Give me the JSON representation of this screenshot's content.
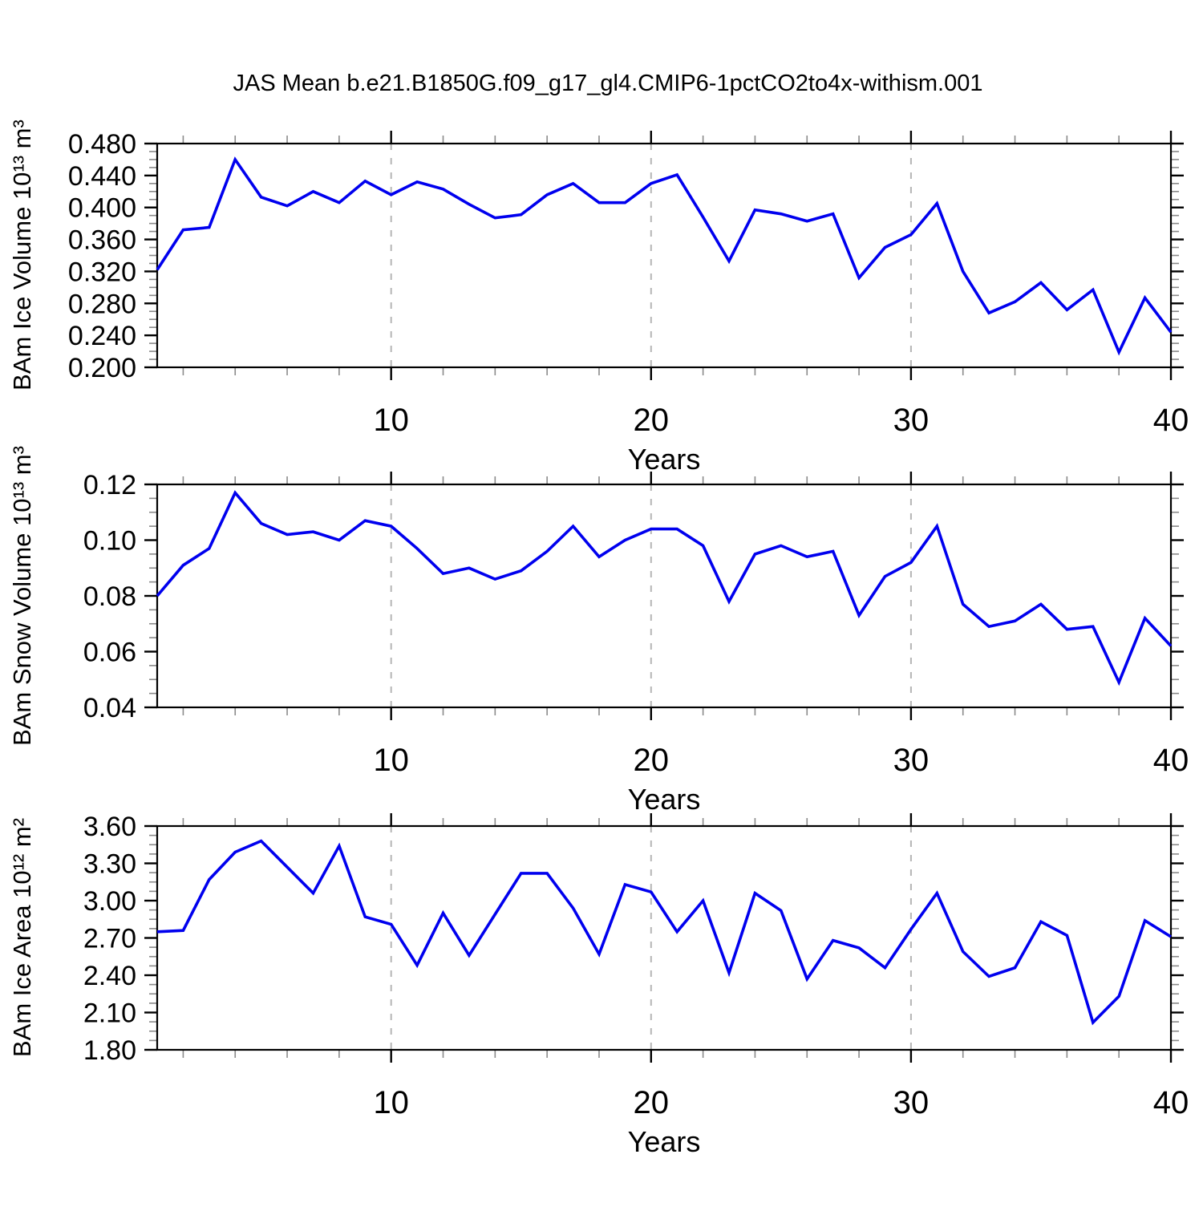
{
  "title": "JAS Mean b.e21.B1850G.f09_g17_gl4.CMIP6-1pctCO2to4x-withism.001",
  "colors": {
    "line": "#0000ee",
    "axis": "#000000",
    "minor_tick": "#8a8a8a",
    "grid": "#b5b5b5"
  },
  "x_axis": {
    "label": "Years",
    "min": 1,
    "max": 40,
    "major_ticks": [
      10,
      20,
      30,
      40
    ],
    "major_tick_labels": [
      "10",
      "20",
      "30",
      "40"
    ],
    "minor_tick_step": 2,
    "gridlines": [
      10,
      20,
      30
    ]
  },
  "chart_data": [
    {
      "id": "ice-volume",
      "type": "line",
      "ylabel": "BAm Ice Volume 10¹³ m³",
      "xlabel": "Years",
      "ylim": [
        0.2,
        0.48
      ],
      "ytick_values": [
        0.48,
        0.44,
        0.4,
        0.36,
        0.32,
        0.28,
        0.24,
        0.2
      ],
      "ytick_labels": [
        "0.480",
        "0.440",
        "0.400",
        "0.360",
        "0.320",
        "0.280",
        "0.240",
        "0.200"
      ],
      "y_minor_step": 0.01,
      "x": [
        1,
        2,
        3,
        4,
        5,
        6,
        7,
        8,
        9,
        10,
        11,
        12,
        13,
        14,
        15,
        16,
        17,
        18,
        19,
        20,
        21,
        22,
        23,
        24,
        25,
        26,
        27,
        28,
        29,
        30,
        31,
        32,
        33,
        34,
        35,
        36,
        37,
        38,
        39,
        40
      ],
      "values": [
        0.322,
        0.372,
        0.375,
        0.46,
        0.413,
        0.402,
        0.42,
        0.406,
        0.433,
        0.416,
        0.432,
        0.423,
        0.404,
        0.387,
        0.391,
        0.416,
        0.43,
        0.406,
        0.406,
        0.43,
        0.441,
        0.388,
        0.333,
        0.397,
        0.392,
        0.383,
        0.392,
        0.312,
        0.35,
        0.366,
        0.405,
        0.32,
        0.268,
        0.282,
        0.306,
        0.272,
        0.297,
        0.219,
        0.287,
        0.244
      ]
    },
    {
      "id": "snow-volume",
      "type": "line",
      "ylabel": "BAm Snow Volume 10¹³ m³",
      "xlabel": "Years",
      "ylim": [
        0.04,
        0.12
      ],
      "ytick_values": [
        0.12,
        0.1,
        0.08,
        0.06,
        0.04
      ],
      "ytick_labels": [
        "0.12",
        "0.10",
        "0.08",
        "0.06",
        "0.04"
      ],
      "y_minor_step": 0.005,
      "x": [
        1,
        2,
        3,
        4,
        5,
        6,
        7,
        8,
        9,
        10,
        11,
        12,
        13,
        14,
        15,
        16,
        17,
        18,
        19,
        20,
        21,
        22,
        23,
        24,
        25,
        26,
        27,
        28,
        29,
        30,
        31,
        32,
        33,
        34,
        35,
        36,
        37,
        38,
        39,
        40
      ],
      "values": [
        0.08,
        0.091,
        0.097,
        0.117,
        0.106,
        0.102,
        0.103,
        0.1,
        0.107,
        0.105,
        0.097,
        0.088,
        0.09,
        0.086,
        0.089,
        0.096,
        0.105,
        0.094,
        0.1,
        0.104,
        0.104,
        0.098,
        0.078,
        0.095,
        0.098,
        0.094,
        0.096,
        0.073,
        0.087,
        0.092,
        0.105,
        0.077,
        0.069,
        0.071,
        0.077,
        0.068,
        0.069,
        0.049,
        0.072,
        0.062
      ]
    },
    {
      "id": "ice-area",
      "type": "line",
      "ylabel": "BAm Ice Area 10¹² m²",
      "xlabel": "Years",
      "ylim": [
        1.8,
        3.6
      ],
      "ytick_values": [
        3.6,
        3.3,
        3.0,
        2.7,
        2.4,
        2.1,
        1.8
      ],
      "ytick_labels": [
        "3.60",
        "3.30",
        "3.00",
        "2.70",
        "2.40",
        "2.10",
        "1.80"
      ],
      "y_minor_step": 0.075,
      "x": [
        1,
        2,
        3,
        4,
        5,
        6,
        7,
        8,
        9,
        10,
        11,
        12,
        13,
        14,
        15,
        16,
        17,
        18,
        19,
        20,
        21,
        22,
        23,
        24,
        25,
        26,
        27,
        28,
        29,
        30,
        31,
        32,
        33,
        34,
        35,
        36,
        37,
        38,
        39,
        40
      ],
      "values": [
        2.75,
        2.76,
        3.17,
        3.39,
        3.48,
        3.27,
        3.06,
        3.44,
        2.87,
        2.81,
        2.48,
        2.9,
        2.56,
        2.89,
        3.22,
        3.22,
        2.94,
        2.57,
        3.13,
        3.07,
        2.75,
        3.0,
        2.42,
        3.06,
        2.92,
        2.37,
        2.68,
        2.62,
        2.46,
        2.77,
        3.06,
        2.59,
        2.39,
        2.46,
        2.83,
        2.72,
        2.02,
        2.23,
        2.84,
        2.71
      ]
    }
  ]
}
